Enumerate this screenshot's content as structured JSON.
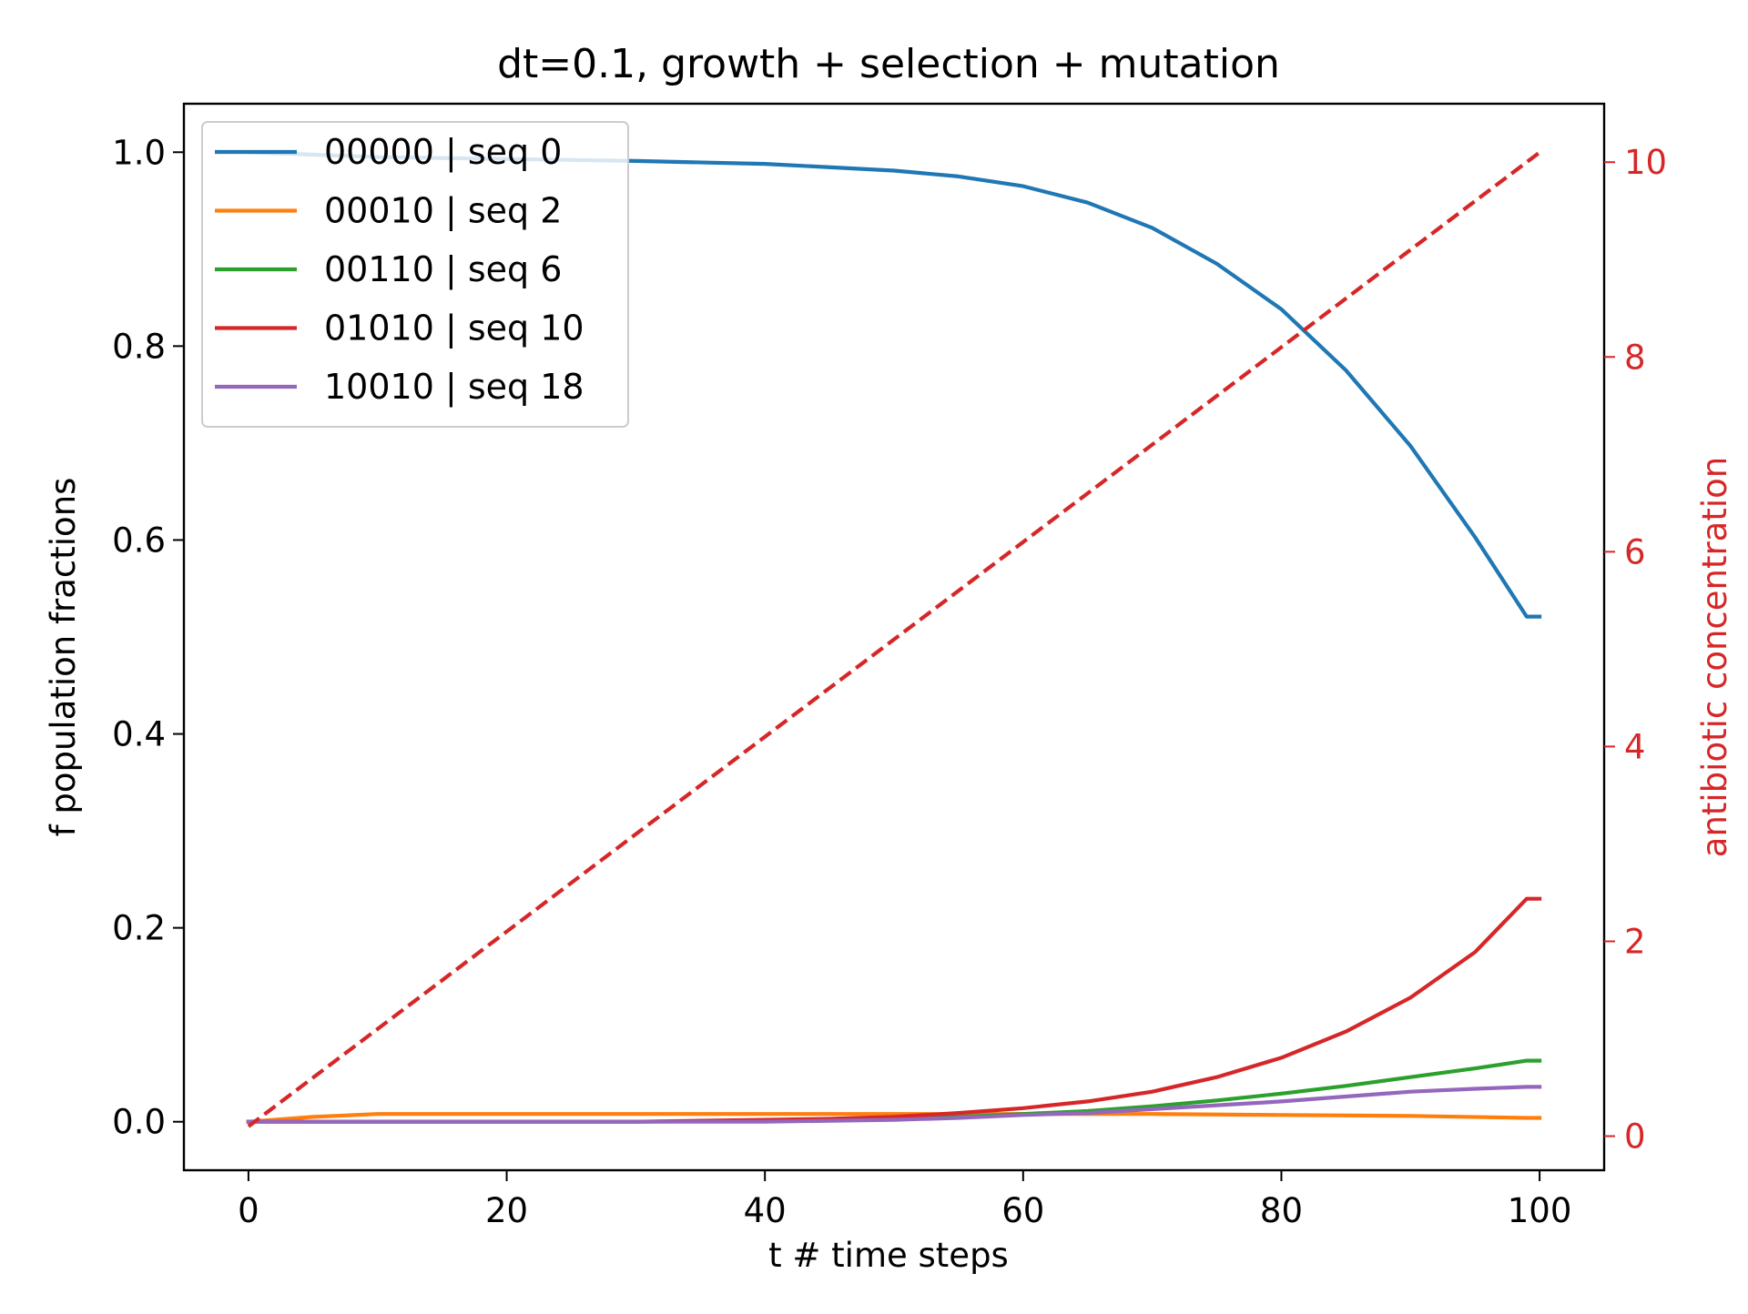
{
  "chart_data": {
    "type": "line",
    "title": "dt=0.1, growth + selection + mutation",
    "xlabel": "t # time steps",
    "ylabel": "f population fractions",
    "y2label": "antibiotic concentration",
    "xlim": [
      -5,
      105
    ],
    "ylim": [
      -0.05,
      1.05
    ],
    "y2lim": [
      -0.35,
      10.6
    ],
    "xticks": [
      0,
      20,
      40,
      60,
      80,
      100
    ],
    "yticks": [
      0.0,
      0.2,
      0.4,
      0.6,
      0.8,
      1.0
    ],
    "y2ticks": [
      0,
      2,
      4,
      6,
      8,
      10
    ],
    "grid": false,
    "legend_position": "upper left",
    "series": [
      {
        "name": "00000 | seq 0",
        "color": "#1f77b4",
        "axis": "left",
        "x": [
          0,
          10,
          20,
          30,
          40,
          50,
          55,
          60,
          65,
          70,
          75,
          80,
          85,
          90,
          95,
          99,
          100
        ],
        "y": [
          1.0,
          0.995,
          0.993,
          0.991,
          0.988,
          0.981,
          0.975,
          0.965,
          0.948,
          0.922,
          0.885,
          0.838,
          0.775,
          0.697,
          0.603,
          0.521,
          0.521
        ]
      },
      {
        "name": "00010 | seq 2",
        "color": "#ff7f0e",
        "axis": "left",
        "x": [
          0,
          5,
          10,
          20,
          30,
          40,
          50,
          60,
          70,
          80,
          90,
          99,
          100
        ],
        "y": [
          0.0,
          0.005,
          0.008,
          0.008,
          0.008,
          0.008,
          0.008,
          0.008,
          0.008,
          0.007,
          0.006,
          0.004,
          0.004
        ]
      },
      {
        "name": "00110 | seq 6",
        "color": "#2ca02c",
        "axis": "left",
        "x": [
          0,
          10,
          20,
          30,
          40,
          50,
          55,
          60,
          65,
          70,
          75,
          80,
          85,
          90,
          95,
          99,
          100
        ],
        "y": [
          0.0,
          0.0,
          0.0,
          0.0,
          0.001,
          0.003,
          0.005,
          0.008,
          0.011,
          0.016,
          0.022,
          0.029,
          0.037,
          0.046,
          0.055,
          0.063,
          0.063
        ]
      },
      {
        "name": "01010 | seq 10",
        "color": "#d62728",
        "axis": "left",
        "x": [
          0,
          10,
          20,
          30,
          40,
          45,
          50,
          55,
          60,
          65,
          70,
          75,
          80,
          85,
          90,
          95,
          99,
          100
        ],
        "y": [
          0.0,
          0.0,
          0.0,
          0.0,
          0.002,
          0.003,
          0.005,
          0.009,
          0.014,
          0.021,
          0.031,
          0.046,
          0.066,
          0.093,
          0.128,
          0.175,
          0.23,
          0.23
        ]
      },
      {
        "name": "10010 | seq 18",
        "color": "#9467bd",
        "axis": "left",
        "x": [
          0,
          10,
          20,
          30,
          40,
          50,
          55,
          60,
          65,
          70,
          75,
          80,
          85,
          90,
          95,
          99,
          100
        ],
        "y": [
          0.0,
          0.0,
          0.0,
          0.0,
          0.0,
          0.002,
          0.004,
          0.007,
          0.009,
          0.013,
          0.017,
          0.021,
          0.026,
          0.031,
          0.034,
          0.036,
          0.036
        ]
      }
    ],
    "secondary_series": {
      "color": "#d62728",
      "style": "dashed",
      "axis": "right",
      "x": [
        0,
        100
      ],
      "y": [
        0.1,
        10.1
      ]
    }
  }
}
